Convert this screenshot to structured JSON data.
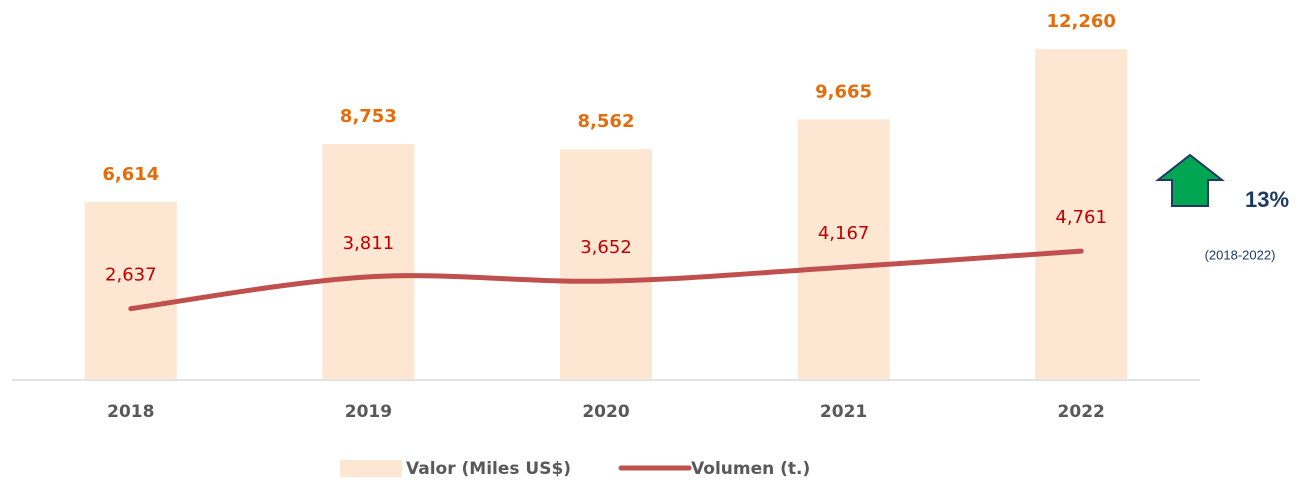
{
  "chart_data": {
    "type": "combo",
    "categories": [
      "2018",
      "2019",
      "2020",
      "2021",
      "2022"
    ],
    "series": [
      {
        "name": "Valor (Miles US$)",
        "type": "bar",
        "color": "#fde6d2",
        "label_color": "#e46c0a",
        "values": [
          6614,
          8753,
          8562,
          9665,
          12260
        ],
        "value_labels": [
          "6,614",
          "8,753",
          "8,562",
          "9,665",
          "12,260"
        ]
      },
      {
        "name": "Volumen (t.)",
        "type": "line",
        "color": "#c0504d",
        "label_color": "#c00000",
        "values": [
          2637,
          3811,
          3652,
          4167,
          4761
        ],
        "value_labels": [
          "2,637",
          "3,811",
          "3,652",
          "4,167",
          "4,761"
        ]
      }
    ],
    "ylim": [
      0,
      14000
    ],
    "annotation": {
      "text": "13%",
      "period": "(2018-2022)"
    }
  }
}
